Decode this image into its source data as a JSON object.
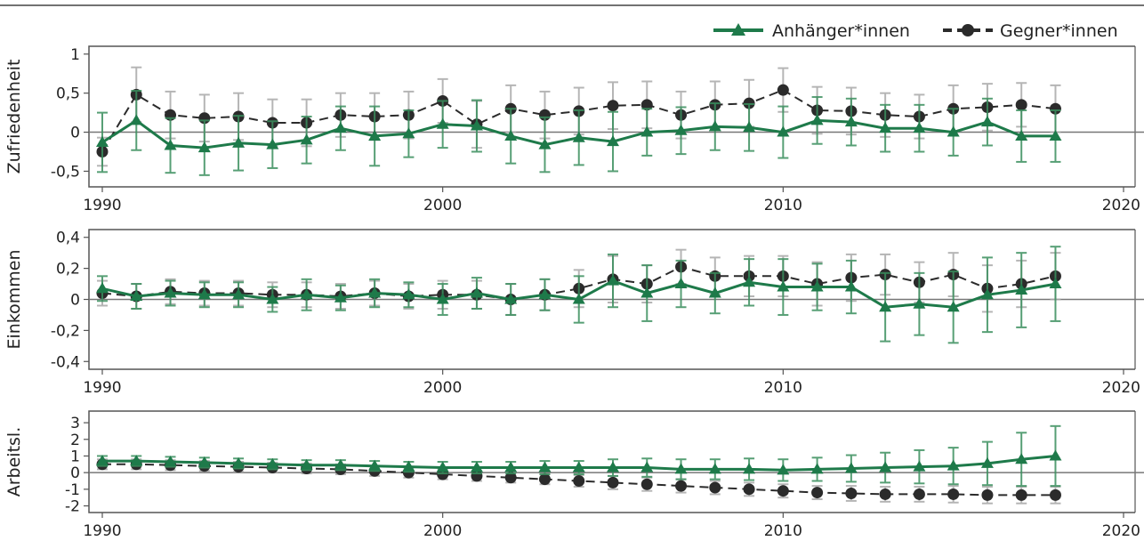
{
  "colors": {
    "supporters": "#1e7a4a",
    "opponents": "#2b2b2b",
    "error_supporters": "#3a8f5e",
    "error_opponents": "#a9a9a9",
    "frame": "#555555"
  },
  "legend": {
    "supporters": "Anhänger*innen",
    "opponents": "Gegner*innen",
    "placement": "top-right"
  },
  "chart_data": [
    {
      "type": "line",
      "ylabel": "Zufriedenheit",
      "xlim": [
        1990,
        2020
      ],
      "ylim": [
        -0.7,
        1.1
      ],
      "xticks": [
        1990,
        2000,
        2010,
        2020
      ],
      "xtick_labels": [
        "1990",
        "2000",
        "2010",
        "2020"
      ],
      "yticks": [
        -0.5,
        0,
        0.5,
        1
      ],
      "ytick_labels": [
        "-0,5",
        "0",
        "0,5",
        "1"
      ],
      "x": [
        1990,
        1991,
        1992,
        1993,
        1994,
        1995,
        1996,
        1997,
        1998,
        1999,
        2000,
        2001,
        2002,
        2003,
        2004,
        2005,
        2006,
        2007,
        2008,
        2009,
        2010,
        2011,
        2012,
        2013,
        2014,
        2015,
        2016,
        2017,
        2018
      ],
      "series": [
        {
          "name": "Anhänger*innen",
          "marker": "triangle",
          "values": [
            -0.13,
            0.15,
            -0.17,
            -0.2,
            -0.14,
            -0.16,
            -0.1,
            0.05,
            -0.05,
            -0.02,
            0.1,
            0.08,
            -0.05,
            -0.16,
            -0.07,
            -0.12,
            0.0,
            0.02,
            0.07,
            0.06,
            0.0,
            0.15,
            0.13,
            0.05,
            0.05,
            0.0,
            0.13,
            -0.05,
            -0.05
          ],
          "err": [
            0.38,
            0.38,
            0.35,
            0.35,
            0.35,
            0.3,
            0.3,
            0.28,
            0.38,
            0.3,
            0.3,
            0.33,
            0.35,
            0.35,
            0.35,
            0.38,
            0.3,
            0.3,
            0.3,
            0.3,
            0.33,
            0.3,
            0.3,
            0.3,
            0.3,
            0.3,
            0.3,
            0.33,
            0.33
          ]
        },
        {
          "name": "Gegner*innen",
          "marker": "circle",
          "values": [
            -0.25,
            0.48,
            0.22,
            0.18,
            0.2,
            0.12,
            0.12,
            0.22,
            0.2,
            0.22,
            0.4,
            0.1,
            0.3,
            0.22,
            0.27,
            0.34,
            0.35,
            0.22,
            0.35,
            0.37,
            0.54,
            0.28,
            0.27,
            0.22,
            0.2,
            0.3,
            0.32,
            0.35,
            0.3
          ],
          "err": [
            0.18,
            0.35,
            0.3,
            0.3,
            0.3,
            0.3,
            0.3,
            0.28,
            0.3,
            0.3,
            0.28,
            0.3,
            0.3,
            0.3,
            0.3,
            0.3,
            0.3,
            0.3,
            0.3,
            0.3,
            0.28,
            0.3,
            0.3,
            0.28,
            0.28,
            0.3,
            0.3,
            0.28,
            0.3
          ]
        }
      ]
    },
    {
      "type": "line",
      "ylabel": "Einkommen",
      "xlim": [
        1990,
        2020
      ],
      "ylim": [
        -0.45,
        0.45
      ],
      "xticks": [
        1990,
        2000,
        2010,
        2020
      ],
      "xtick_labels": [
        "1990",
        "2000",
        "2010",
        "2020"
      ],
      "yticks": [
        -0.4,
        -0.2,
        0,
        0.2,
        0.4
      ],
      "ytick_labels": [
        "-0,4",
        "-0,2",
        "0",
        "0,2",
        "0,4"
      ],
      "x": [
        1990,
        1991,
        1992,
        1993,
        1994,
        1995,
        1996,
        1997,
        1998,
        1999,
        2000,
        2001,
        2002,
        2003,
        2004,
        2005,
        2006,
        2007,
        2008,
        2009,
        2010,
        2011,
        2012,
        2013,
        2014,
        2015,
        2016,
        2017,
        2018
      ],
      "series": [
        {
          "name": "Anhänger*innen",
          "marker": "triangle",
          "values": [
            0.07,
            0.02,
            0.04,
            0.03,
            0.03,
            0.0,
            0.03,
            0.01,
            0.04,
            0.03,
            0.0,
            0.04,
            0.0,
            0.03,
            0.0,
            0.12,
            0.04,
            0.1,
            0.04,
            0.11,
            0.08,
            0.08,
            0.08,
            -0.05,
            -0.03,
            -0.05,
            0.03,
            0.06,
            0.1
          ],
          "err": [
            0.08,
            0.08,
            0.08,
            0.08,
            0.08,
            0.08,
            0.1,
            0.08,
            0.09,
            0.08,
            0.1,
            0.1,
            0.1,
            0.1,
            0.15,
            0.17,
            0.18,
            0.15,
            0.13,
            0.15,
            0.18,
            0.15,
            0.17,
            0.22,
            0.2,
            0.23,
            0.24,
            0.24,
            0.24
          ]
        },
        {
          "name": "Gegner*innen",
          "marker": "circle",
          "values": [
            0.04,
            0.02,
            0.05,
            0.04,
            0.04,
            0.03,
            0.03,
            0.02,
            0.04,
            0.02,
            0.03,
            0.03,
            0.0,
            0.03,
            0.07,
            0.13,
            0.1,
            0.21,
            0.15,
            0.15,
            0.15,
            0.1,
            0.14,
            0.16,
            0.11,
            0.16,
            0.07,
            0.1,
            0.15
          ],
          "err": [
            0.08,
            0.08,
            0.08,
            0.08,
            0.08,
            0.08,
            0.08,
            0.08,
            0.08,
            0.08,
            0.09,
            0.09,
            0.1,
            0.1,
            0.12,
            0.15,
            0.12,
            0.11,
            0.12,
            0.13,
            0.13,
            0.14,
            0.15,
            0.13,
            0.13,
            0.14,
            0.15,
            0.15,
            0.15
          ]
        }
      ]
    },
    {
      "type": "line",
      "ylabel": "Arbeitsl.",
      "xlim": [
        1990,
        2020
      ],
      "ylim": [
        -2.4,
        3.7
      ],
      "xticks": [
        1990,
        2000,
        2010,
        2020
      ],
      "xtick_labels": [
        "1990",
        "2000",
        "2010",
        "2020"
      ],
      "yticks": [
        -2,
        -1,
        0,
        1,
        2,
        3
      ],
      "ytick_labels": [
        "-2",
        "-1",
        "0",
        "1",
        "2",
        "3"
      ],
      "x": [
        1990,
        1991,
        1992,
        1993,
        1994,
        1995,
        1996,
        1997,
        1998,
        1999,
        2000,
        2001,
        2002,
        2003,
        2004,
        2005,
        2006,
        2007,
        2008,
        2009,
        2010,
        2011,
        2012,
        2013,
        2014,
        2015,
        2016,
        2017,
        2018
      ],
      "series": [
        {
          "name": "Anhänger*innen",
          "marker": "triangle",
          "values": [
            0.7,
            0.7,
            0.65,
            0.6,
            0.55,
            0.5,
            0.45,
            0.45,
            0.4,
            0.35,
            0.3,
            0.3,
            0.3,
            0.3,
            0.3,
            0.3,
            0.3,
            0.2,
            0.2,
            0.2,
            0.15,
            0.2,
            0.25,
            0.3,
            0.35,
            0.4,
            0.55,
            0.8,
            1.0
          ],
          "err": [
            0.3,
            0.3,
            0.3,
            0.3,
            0.3,
            0.3,
            0.3,
            0.3,
            0.3,
            0.3,
            0.35,
            0.35,
            0.35,
            0.4,
            0.4,
            0.5,
            0.55,
            0.6,
            0.6,
            0.65,
            0.65,
            0.7,
            0.8,
            0.9,
            1.0,
            1.1,
            1.3,
            1.6,
            1.8
          ]
        },
        {
          "name": "Gegner*innen",
          "marker": "circle",
          "values": [
            0.5,
            0.5,
            0.45,
            0.4,
            0.35,
            0.3,
            0.25,
            0.2,
            0.1,
            0.0,
            -0.1,
            -0.2,
            -0.3,
            -0.4,
            -0.5,
            -0.6,
            -0.7,
            -0.8,
            -0.9,
            -1.0,
            -1.1,
            -1.2,
            -1.25,
            -1.3,
            -1.3,
            -1.3,
            -1.35,
            -1.35,
            -1.35
          ],
          "err": [
            0.3,
            0.3,
            0.3,
            0.3,
            0.3,
            0.3,
            0.3,
            0.3,
            0.3,
            0.3,
            0.3,
            0.3,
            0.3,
            0.3,
            0.35,
            0.4,
            0.4,
            0.4,
            0.4,
            0.4,
            0.4,
            0.4,
            0.45,
            0.45,
            0.45,
            0.5,
            0.5,
            0.5,
            0.5
          ]
        }
      ]
    }
  ]
}
